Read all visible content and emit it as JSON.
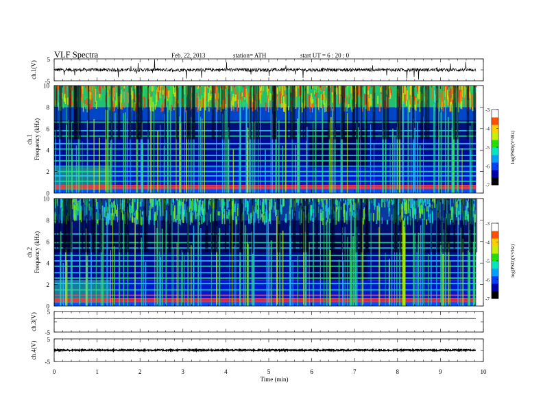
{
  "header": {
    "title": "VLF  Spectra",
    "date": "Feb. 22, 2013",
    "station": "station= ATH",
    "start": "start  UT  =   6  : 20 : 0"
  },
  "chart_data": [
    {
      "type": "line",
      "panel": "ch1-waveform",
      "ylabel": "ch.1(V)",
      "yticks": [
        "5",
        "-5"
      ],
      "ylim": [
        -5,
        5
      ],
      "xlim": [
        0,
        10
      ],
      "data_end_min": 9.83,
      "baseline": 0,
      "noise_amplitude": 0.8,
      "spike_amplitude": 4.5
    },
    {
      "type": "heatmap",
      "panel": "ch1-spectrogram",
      "ylabel_line1": "ch.1",
      "ylabel_line2": "Frequency  (kHz)",
      "yticks": [
        "0",
        "2",
        "4",
        "6",
        "8",
        "10"
      ],
      "ylim": [
        0,
        10
      ],
      "xlim": [
        0,
        10
      ],
      "data_end_min": 9.83,
      "colorbar": {
        "label": "log(PSD)(V²/Hz)",
        "ticks": [
          "-3",
          "-4",
          "-5",
          "-6",
          "-7"
        ],
        "range": [
          -7,
          -3
        ],
        "colors": [
          "#000000",
          "#0000aa",
          "#0040ff",
          "#00a0ff",
          "#00e8c0",
          "#20e000",
          "#c8f000",
          "#ffd000",
          "#ff5000",
          "#ffffff"
        ]
      },
      "persistent_lines_khz": [
        0.5,
        0.7,
        1.1,
        1.6,
        2.0,
        2.5,
        3.0,
        3.5,
        4.1,
        4.6,
        5.3,
        5.8,
        6.6
      ],
      "quiet_interval_min": [
        5.95,
        7.3
      ]
    },
    {
      "type": "heatmap",
      "panel": "ch2-spectrogram",
      "ylabel_line1": "ch.2",
      "ylabel_line2": "Frequency  (kHz)",
      "yticks": [
        "0",
        "2",
        "4",
        "6",
        "8",
        "10"
      ],
      "ylim": [
        0,
        10
      ],
      "xlim": [
        0,
        10
      ],
      "data_end_min": 9.83,
      "colorbar": {
        "label": "log(PSD)(V²/Hz)",
        "ticks": [
          "-3",
          "-4",
          "-5",
          "-6",
          "-7"
        ],
        "range": [
          -7,
          -3
        ],
        "colors": [
          "#000000",
          "#0000aa",
          "#0040ff",
          "#00a0ff",
          "#00e8c0",
          "#20e000",
          "#c8f000",
          "#ffd000",
          "#ff5000",
          "#ffffff"
        ]
      },
      "persistent_lines_khz": [
        0.7,
        1.0,
        1.5,
        2.1,
        2.6,
        3.1,
        3.7,
        4.2,
        4.7,
        5.4,
        5.9,
        6.7
      ],
      "quiet_interval_min": [
        5.95,
        7.3
      ]
    },
    {
      "type": "line",
      "panel": "ch3-waveform",
      "ylabel": "ch.3(V)",
      "yticks": [
        "5",
        "-5"
      ],
      "ylim": [
        -5,
        5
      ],
      "xlim": [
        0,
        10
      ],
      "data_end_min": 9.83,
      "baseline": 1.6,
      "noise_amplitude": 0.05
    },
    {
      "type": "line",
      "panel": "ch4-waveform",
      "ylabel": "ch.4(V)",
      "yticks": [
        "5",
        "-5"
      ],
      "ylim": [
        -5,
        5
      ],
      "xlim": [
        0,
        10
      ],
      "data_end_min": 9.83,
      "baseline": 0,
      "noise_amplitude": 0.3
    }
  ],
  "xaxis": {
    "label": "Time  (min)",
    "ticks": [
      "0",
      "1",
      "2",
      "3",
      "4",
      "5",
      "6",
      "7",
      "8",
      "9",
      "10"
    ],
    "range": [
      0,
      10
    ]
  }
}
